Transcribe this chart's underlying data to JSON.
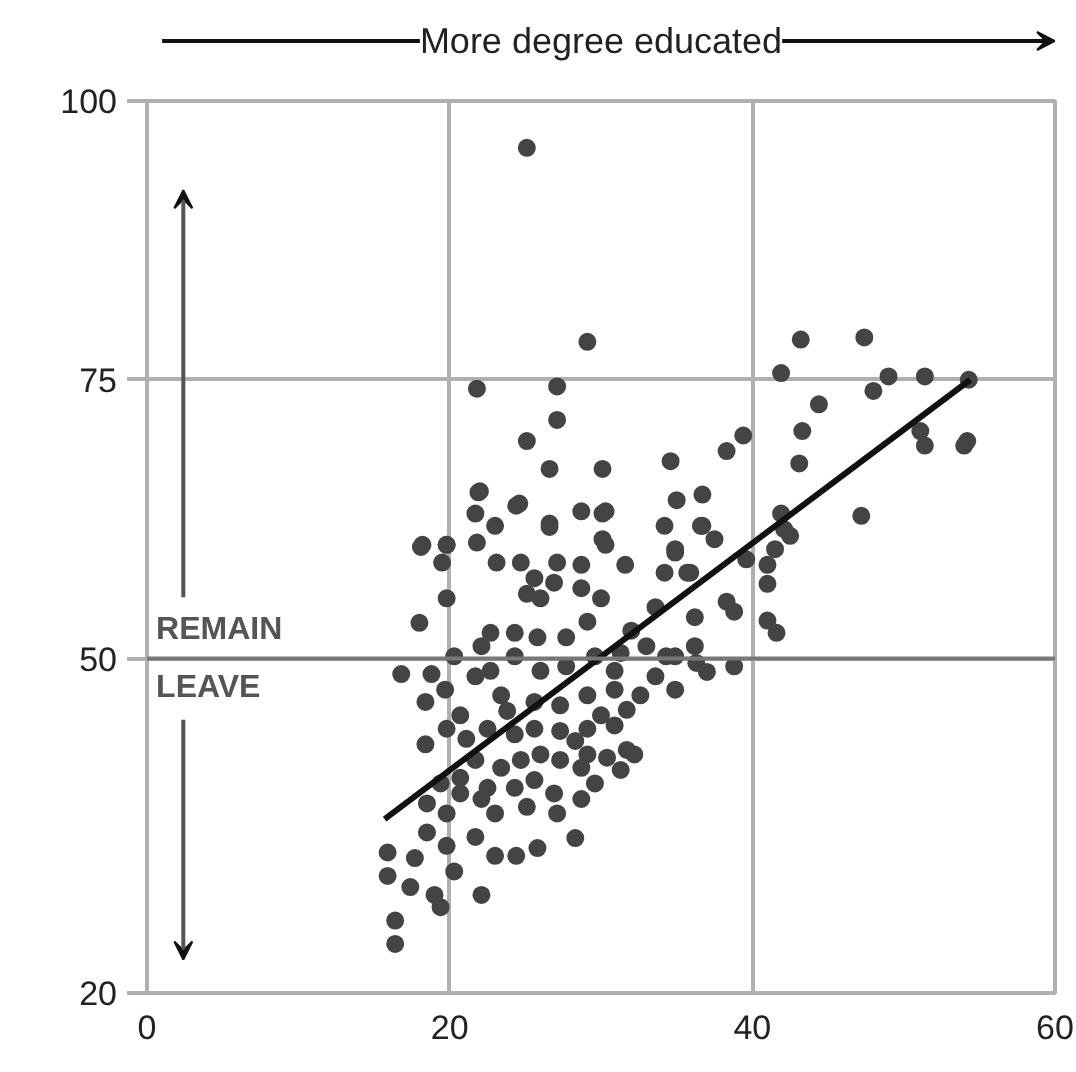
{
  "chart_data": {
    "type": "scatter",
    "xlabel": "More degree educated",
    "xlim": [
      0,
      60
    ],
    "xticks": [
      0,
      20,
      40,
      60
    ],
    "ylim": [
      20,
      100
    ],
    "yticks": [
      20,
      50,
      75,
      100
    ],
    "grid": true,
    "marker": "circle",
    "annotations": [
      "REMAIN",
      "LEAVE"
    ],
    "ref_lines": [
      {
        "axis": "y",
        "value": 50,
        "label": null,
        "color": "#777777"
      }
    ],
    "series": [
      {
        "color": "#444444",
        "x": [
          25.1,
          29.1,
          21.8,
          27.1,
          27.1,
          25.1,
          26.6,
          30.1,
          34.6,
          22,
          21.7,
          24.4,
          26.6,
          30.1,
          30.1,
          35,
          36.7,
          18.2,
          19.8,
          43.2,
          47.4,
          41.9,
          49,
          51.4,
          48,
          54.3,
          44.4,
          43.3,
          39.4,
          38.3,
          43.1,
          51.1,
          51.4,
          54,
          54.2,
          36.7,
          47.2,
          41.9,
          42.1,
          42.5,
          41.5,
          41,
          39.6,
          41,
          41,
          41.6,
          36.6,
          34.9,
          37.5,
          35.7,
          38.3,
          38.8,
          36.2,
          37,
          38.8,
          34.3,
          21.9,
          18.1,
          19.8,
          19.5,
          21.8,
          23,
          24.6,
          26.6,
          28.7,
          30.3,
          34.2,
          19.8,
          18,
          23.1,
          24.7,
          25.6,
          27.1,
          28.7,
          26.9,
          30.3,
          31.6,
          30,
          28.7,
          26,
          25.1,
          34.2,
          35.9,
          34.9,
          36.2,
          33.6,
          32,
          29.1,
          27.7,
          25.8,
          24.3,
          22.7,
          22.1,
          20.3,
          16.8,
          18.8,
          18.4,
          19.7,
          19.8,
          18.4,
          20.7,
          21.7,
          22.7,
          24.3,
          26,
          27.7,
          29.6,
          31.3,
          33,
          34.9,
          36.3,
          34.9,
          32.6,
          30.9,
          29.1,
          27.3,
          25.6,
          23.8,
          22.5,
          24.3,
          25.6,
          27.3,
          29.1,
          30.9,
          31.7,
          30.4,
          29.1,
          28.7,
          27.3,
          26,
          24.7,
          23.4,
          21.7,
          20.7,
          19.4,
          20.7,
          22.5,
          24.3,
          25.6,
          26.9,
          25.1,
          23,
          22.1,
          19.8,
          18.5,
          15.9,
          15.9,
          17.7,
          19.8,
          21.7,
          23,
          24.4,
          25.8,
          28.3,
          27.1,
          28.7,
          17.4,
          19,
          19.4,
          22.1,
          20.3,
          16.4,
          16.4,
          18.5,
          21.1,
          23.4,
          30.9,
          33.6,
          31.7,
          30,
          28.3,
          31.3,
          29.6,
          32.2
        ],
        "values": [
          95.8,
          78.4,
          74.2,
          74.4,
          71.4,
          69.5,
          67,
          67,
          67.7,
          65,
          63,
          63.7,
          62.1,
          63,
          60.7,
          64.2,
          61.9,
          60.2,
          60.2,
          78.6,
          78.8,
          75.6,
          75.3,
          75.3,
          74,
          75,
          72.8,
          70.4,
          70,
          68.6,
          67.5,
          70.4,
          69.1,
          69.1,
          69.5,
          64.7,
          62.8,
          63,
          61.6,
          61,
          59.8,
          58.4,
          58.9,
          56.7,
          53.4,
          52.3,
          61.9,
          59.8,
          60.7,
          57.7,
          55.1,
          54.2,
          51.1,
          48.8,
          49.3,
          50.2,
          64.9,
          60,
          60.2,
          58.6,
          60.4,
          61.9,
          63.9,
          61.8,
          63.2,
          63.2,
          61.9,
          55.4,
          53.2,
          58.6,
          58.6,
          57.2,
          58.6,
          58.4,
          56.8,
          60.2,
          58.4,
          55.4,
          56.3,
          55.4,
          55.8,
          57.7,
          57.7,
          59.5,
          53.7,
          54.6,
          52.5,
          53.3,
          51.9,
          51.9,
          52.3,
          52.3,
          51.1,
          50.2,
          48.6,
          48.6,
          46.1,
          47.2,
          43.7,
          42.3,
          44.9,
          48.4,
          48.9,
          50.2,
          48.9,
          49.3,
          50.2,
          50.5,
          51.1,
          50.2,
          49.6,
          47.2,
          46.7,
          47.2,
          46.7,
          45.8,
          46.1,
          45.3,
          43.7,
          43.2,
          43.7,
          43.5,
          43.7,
          44,
          41.8,
          41.1,
          41.4,
          40.2,
          40.9,
          41.4,
          40.9,
          40.2,
          40.9,
          39.3,
          38.8,
          37.9,
          38.4,
          38.4,
          39.1,
          37.9,
          36.7,
          36.1,
          37.4,
          36.1,
          34.4,
          32.6,
          30.5,
          32.1,
          33.2,
          34,
          32.3,
          32.3,
          33,
          33.9,
          36.1,
          37.4,
          29.5,
          28.8,
          27.7,
          28.8,
          30.9,
          26.5,
          24.4,
          37,
          42.8,
          46.7,
          48.9,
          48.4,
          45.4,
          44.9,
          42.6,
          40,
          38.8,
          41.4
        ]
      },
      {
        "type": "line",
        "color": "#111111",
        "line_style": "solid",
        "marker": "none",
        "x": [
          15.7,
          54.4
        ],
        "values": [
          35.6,
          75
        ]
      }
    ]
  }
}
